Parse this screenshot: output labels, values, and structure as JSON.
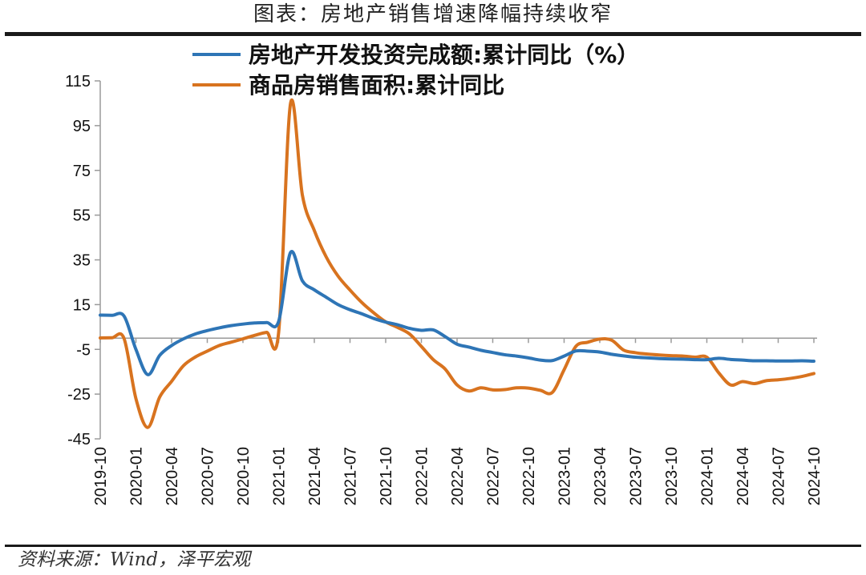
{
  "title": "图表：房地产销售增速降幅持续收窄",
  "source": "资料来源：Wind，泽平宏观",
  "chart_data": {
    "type": "line",
    "ylim": [
      -45,
      115
    ],
    "yticks": [
      -45,
      -25,
      -5,
      15,
      35,
      55,
      75,
      95,
      115
    ],
    "xticks": [
      "2019-10",
      "2020-01",
      "2020-04",
      "2020-07",
      "2020-10",
      "2021-01",
      "2021-04",
      "2021-07",
      "2021-10",
      "2022-01",
      "2022-04",
      "2022-07",
      "2022-10",
      "2023-01",
      "2023-04",
      "2023-07",
      "2023-10",
      "2024-01",
      "2024-04",
      "2024-07",
      "2024-10"
    ],
    "legend_position": "top",
    "series": [
      {
        "name": "房地产开发投资完成额:累计同比（%）",
        "color": "#2e75b6",
        "x": [
          "2019-10",
          "2019-11",
          "2019-12",
          "2020-01",
          "2020-02",
          "2020-03",
          "2020-04",
          "2020-05",
          "2020-06",
          "2020-07",
          "2020-08",
          "2020-09",
          "2020-10",
          "2020-11",
          "2020-12",
          "2021-01",
          "2021-02",
          "2021-03",
          "2021-04",
          "2021-05",
          "2021-06",
          "2021-07",
          "2021-08",
          "2021-09",
          "2021-10",
          "2021-11",
          "2021-12",
          "2022-01",
          "2022-02",
          "2022-03",
          "2022-04",
          "2022-05",
          "2022-06",
          "2022-07",
          "2022-08",
          "2022-09",
          "2022-10",
          "2022-11",
          "2022-12",
          "2023-01",
          "2023-02",
          "2023-03",
          "2023-04",
          "2023-05",
          "2023-06",
          "2023-07",
          "2023-08",
          "2023-09",
          "2023-10",
          "2023-11",
          "2023-12",
          "2024-01",
          "2024-02",
          "2024-03",
          "2024-04",
          "2024-05",
          "2024-06",
          "2024-07",
          "2024-08",
          "2024-09",
          "2024-10"
        ],
        "values": [
          10.3,
          10.2,
          9.9,
          -5.0,
          -16.3,
          -7.7,
          -3.3,
          -0.3,
          1.9,
          3.4,
          4.6,
          5.6,
          6.3,
          6.8,
          7.0,
          7.5,
          38.3,
          25.6,
          21.6,
          18.3,
          15.0,
          12.7,
          10.9,
          8.8,
          7.2,
          6.0,
          4.4,
          3.5,
          3.7,
          0.7,
          -2.7,
          -4.0,
          -5.4,
          -6.4,
          -7.4,
          -8.0,
          -8.8,
          -9.8,
          -10.0,
          -8.0,
          -5.7,
          -5.8,
          -6.2,
          -7.2,
          -7.9,
          -8.5,
          -8.8,
          -9.1,
          -9.3,
          -9.4,
          -9.6,
          -9.6,
          -9.0,
          -9.5,
          -9.8,
          -10.1,
          -10.1,
          -10.2,
          -10.2,
          -10.1,
          -10.3
        ]
      },
      {
        "name": "商品房销售面积:累计同比",
        "color": "#d8731f",
        "x": [
          "2019-10",
          "2019-11",
          "2019-12",
          "2020-01",
          "2020-02",
          "2020-03",
          "2020-04",
          "2020-05",
          "2020-06",
          "2020-07",
          "2020-08",
          "2020-09",
          "2020-10",
          "2020-11",
          "2020-12",
          "2021-01",
          "2021-02",
          "2021-03",
          "2021-04",
          "2021-05",
          "2021-06",
          "2021-07",
          "2021-08",
          "2021-09",
          "2021-10",
          "2021-11",
          "2021-12",
          "2022-01",
          "2022-02",
          "2022-03",
          "2022-04",
          "2022-05",
          "2022-06",
          "2022-07",
          "2022-08",
          "2022-09",
          "2022-10",
          "2022-11",
          "2022-12",
          "2023-01",
          "2023-02",
          "2023-03",
          "2023-04",
          "2023-05",
          "2023-06",
          "2023-07",
          "2023-08",
          "2023-09",
          "2023-10",
          "2023-11",
          "2023-12",
          "2024-01",
          "2024-02",
          "2024-03",
          "2024-04",
          "2024-05",
          "2024-06",
          "2024-07",
          "2024-08",
          "2024-09",
          "2024-10"
        ],
        "values": [
          0.1,
          0.2,
          -0.1,
          -27.0,
          -39.9,
          -26.3,
          -19.3,
          -12.3,
          -8.4,
          -5.8,
          -3.3,
          -1.8,
          -0.3,
          1.3,
          2.6,
          2.6,
          104.9,
          63.8,
          48.1,
          36.3,
          27.7,
          21.5,
          15.9,
          11.3,
          7.3,
          4.8,
          1.9,
          -3.7,
          -9.6,
          -13.8,
          -20.9,
          -23.6,
          -22.2,
          -23.1,
          -23.0,
          -22.2,
          -22.3,
          -23.3,
          -24.3,
          -14.1,
          -3.6,
          -1.8,
          -0.4,
          -0.9,
          -5.3,
          -6.5,
          -7.1,
          -7.5,
          -7.8,
          -8.0,
          -8.5,
          -8.5,
          -15.5,
          -20.9,
          -19.4,
          -20.3,
          -19.0,
          -18.6,
          -18.0,
          -17.1,
          -15.8
        ]
      }
    ]
  }
}
